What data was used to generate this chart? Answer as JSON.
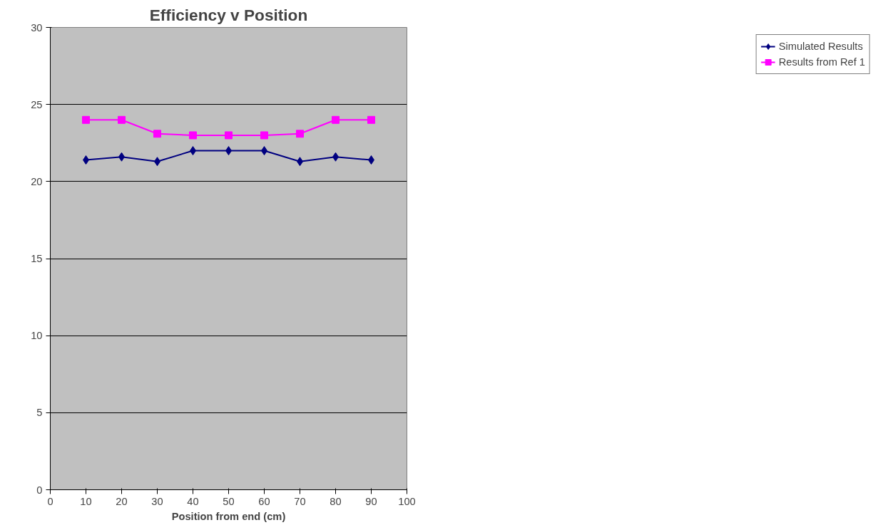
{
  "chart_data": {
    "type": "line",
    "title": "Efficiency v Position",
    "xlabel": "Position from end (cm)",
    "x": [
      10,
      20,
      30,
      40,
      50,
      60,
      70,
      80,
      90
    ],
    "series": [
      {
        "name": "Simulated Results",
        "color": "#000080",
        "marker": "diamond",
        "values": [
          21.4,
          21.6,
          21.3,
          22.0,
          22.0,
          22.0,
          21.3,
          21.6,
          21.4
        ]
      },
      {
        "name": "Results from Ref 1",
        "color": "#ff00ff",
        "marker": "square",
        "values": [
          24.0,
          24.0,
          23.1,
          23.0,
          23.0,
          23.0,
          23.1,
          24.0,
          24.0
        ]
      }
    ],
    "xlim": [
      0,
      100
    ],
    "xticks": [
      0,
      10,
      20,
      30,
      40,
      50,
      60,
      70,
      80,
      90,
      100
    ],
    "ylim": [
      0,
      30
    ],
    "yticks": [
      0,
      5,
      10,
      15,
      20,
      25,
      30
    ],
    "grid": "y",
    "legend": "right",
    "line_style": "solid"
  }
}
